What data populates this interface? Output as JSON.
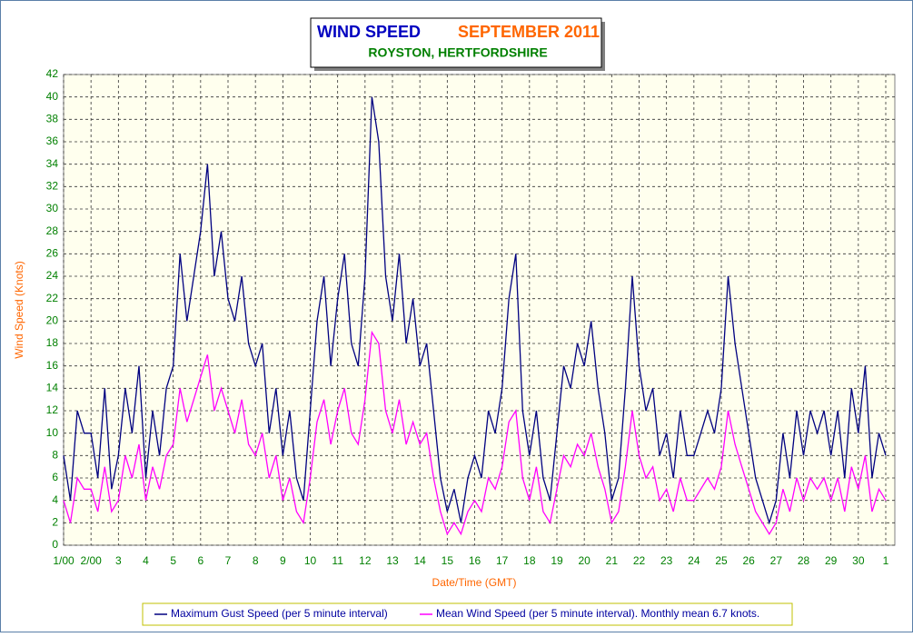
{
  "chart_data": {
    "type": "line",
    "title": "WIND SPEED",
    "title2": "SEPTEMBER 2011",
    "subtitle": "ROYSTON, HERTFORDSHIRE",
    "ylabel": "Wind Speed (Knots)",
    "xlabel": "Date/Time (GMT)",
    "x": [
      1,
      1.25,
      1.5,
      1.75,
      2,
      2.25,
      2.5,
      2.75,
      3,
      3.25,
      3.5,
      3.75,
      4,
      4.25,
      4.5,
      4.75,
      5,
      5.25,
      5.5,
      5.75,
      6,
      6.25,
      6.5,
      6.75,
      7,
      7.25,
      7.5,
      7.75,
      8,
      8.25,
      8.5,
      8.75,
      9,
      9.25,
      9.5,
      9.75,
      10,
      10.25,
      10.5,
      10.75,
      11,
      11.25,
      11.5,
      11.75,
      12,
      12.25,
      12.5,
      12.75,
      13,
      13.25,
      13.5,
      13.75,
      14,
      14.25,
      14.5,
      14.75,
      15,
      15.25,
      15.5,
      15.75,
      16,
      16.25,
      16.5,
      16.75,
      17,
      17.25,
      17.5,
      17.75,
      18,
      18.25,
      18.5,
      18.75,
      19,
      19.25,
      19.5,
      19.75,
      20,
      20.25,
      20.5,
      20.75,
      21,
      21.25,
      21.5,
      21.75,
      22,
      22.25,
      22.5,
      22.75,
      23,
      23.25,
      23.5,
      23.75,
      24,
      24.25,
      24.5,
      24.75,
      25,
      25.25,
      25.5,
      25.75,
      26,
      26.25,
      26.5,
      26.75,
      27,
      27.25,
      27.5,
      27.75,
      28,
      28.25,
      28.5,
      28.75,
      29,
      29.25,
      29.5,
      29.75,
      30,
      30.25,
      30.5,
      30.75,
      31
    ],
    "series": [
      {
        "name": "Maximum Gust Speed (per 5 minute interval)",
        "color": "#000080",
        "values": [
          8,
          4,
          12,
          10,
          10,
          6,
          14,
          5,
          8,
          14,
          10,
          16,
          6,
          12,
          8,
          14,
          16,
          26,
          20,
          24,
          28,
          34,
          24,
          28,
          22,
          20,
          24,
          18,
          16,
          18,
          10,
          14,
          8,
          12,
          6,
          4,
          12,
          20,
          24,
          16,
          22,
          26,
          18,
          16,
          24,
          40,
          36,
          24,
          20,
          26,
          18,
          22,
          16,
          18,
          12,
          6,
          3,
          5,
          2,
          6,
          8,
          6,
          12,
          10,
          14,
          22,
          26,
          12,
          8,
          12,
          6,
          4,
          10,
          16,
          14,
          18,
          16,
          20,
          14,
          10,
          4,
          6,
          14,
          24,
          16,
          12,
          14,
          8,
          10,
          6,
          12,
          8,
          8,
          10,
          12,
          10,
          14,
          24,
          18,
          14,
          10,
          6,
          4,
          2,
          4,
          10,
          6,
          12,
          8,
          12,
          10,
          12,
          8,
          12,
          6,
          14,
          10,
          16,
          6,
          10,
          8
        ]
      },
      {
        "name": "Mean Wind Speed (per 5 minute interval). Monthly mean 6.7 knots.",
        "color": "#ff00ff",
        "values": [
          4,
          2,
          6,
          5,
          5,
          3,
          7,
          3,
          4,
          8,
          6,
          9,
          4,
          7,
          5,
          8,
          9,
          14,
          11,
          13,
          15,
          17,
          12,
          14,
          12,
          10,
          13,
          9,
          8,
          10,
          6,
          8,
          4,
          6,
          3,
          2,
          6,
          11,
          13,
          9,
          12,
          14,
          10,
          9,
          13,
          19,
          18,
          12,
          10,
          13,
          9,
          11,
          9,
          10,
          6,
          3,
          1,
          2,
          1,
          3,
          4,
          3,
          6,
          5,
          7,
          11,
          12,
          6,
          4,
          7,
          3,
          2,
          5,
          8,
          7,
          9,
          8,
          10,
          7,
          5,
          2,
          3,
          7,
          12,
          8,
          6,
          7,
          4,
          5,
          3,
          6,
          4,
          4,
          5,
          6,
          5,
          7,
          12,
          9,
          7,
          5,
          3,
          2,
          1,
          2,
          5,
          3,
          6,
          4,
          6,
          5,
          6,
          4,
          6,
          3,
          7,
          5,
          8,
          3,
          5,
          4
        ]
      }
    ],
    "xlim": [
      1,
      31
    ],
    "xticks": [
      {
        "value": 1,
        "label": "1/00"
      },
      {
        "value": 2,
        "label": "2/00"
      },
      3,
      4,
      5,
      6,
      7,
      8,
      9,
      10,
      11,
      12,
      13,
      14,
      15,
      16,
      17,
      18,
      19,
      20,
      21,
      22,
      23,
      24,
      25,
      26,
      27,
      28,
      29,
      30,
      {
        "value": 31,
        "label": "1"
      }
    ],
    "ylim": [
      0,
      42
    ],
    "yticks": [
      0,
      2,
      4,
      6,
      8,
      10,
      12,
      14,
      16,
      18,
      20,
      22,
      24,
      26,
      28,
      30,
      32,
      34,
      36,
      38,
      40,
      42
    ],
    "grid": true
  }
}
